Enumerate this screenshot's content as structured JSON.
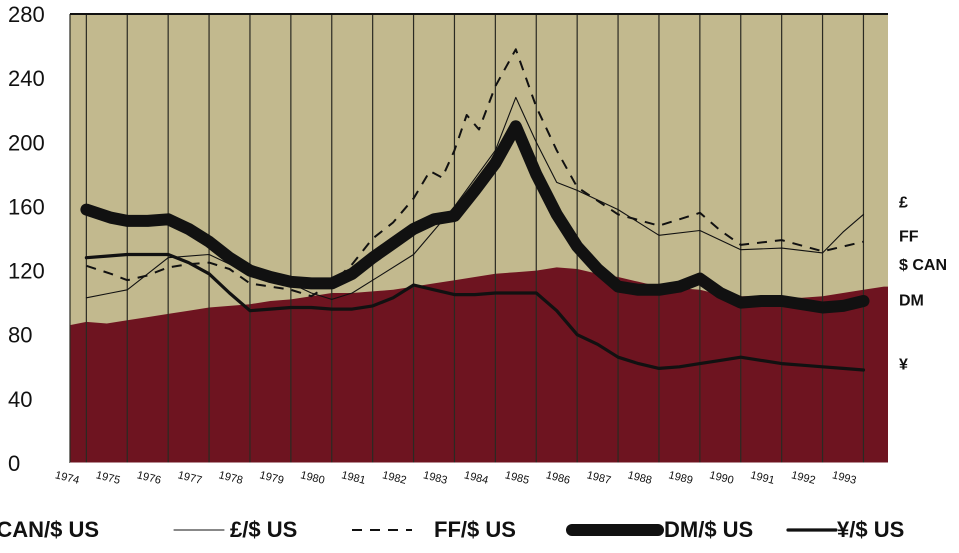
{
  "chart_data": {
    "type": "line",
    "title": "",
    "xlabel": "",
    "ylabel": "",
    "ylim": [
      0,
      280
    ],
    "yticks": [
      0,
      40,
      80,
      120,
      160,
      200,
      240,
      280
    ],
    "categories": [
      "1974",
      "1975",
      "1976",
      "1977",
      "1978",
      "1979",
      "1980",
      "1981",
      "1982",
      "1983",
      "1984",
      "1985",
      "1986",
      "1987",
      "1988",
      "1989",
      "1990",
      "1991",
      "1992",
      "1993"
    ],
    "grid": "vertical",
    "colors": {
      "plot_background": "#c2b98e",
      "area_fill": "#6e1420",
      "line": "#111111",
      "grid": "#2a2a22"
    },
    "series": [
      {
        "name": "$ CAN/$ US",
        "style": "area",
        "x": [
          1973.6,
          1974.0,
          1974.5,
          1975.0,
          1975.5,
          1976.0,
          1976.5,
          1977.0,
          1977.5,
          1978.0,
          1978.5,
          1979.0,
          1979.5,
          1980.0,
          1980.5,
          1981.0,
          1981.5,
          1982.0,
          1982.5,
          1983.0,
          1983.5,
          1984.0,
          1984.5,
          1985.0,
          1985.5,
          1986.0,
          1986.5,
          1987.0,
          1987.5,
          1988.0,
          1988.5,
          1989.0,
          1989.5,
          1990.0,
          1990.5,
          1991.0,
          1991.5,
          1992.0,
          1992.5,
          1993.0,
          1993.5
        ],
        "values": [
          86,
          88,
          87,
          89,
          91,
          93,
          95,
          97,
          98,
          99,
          101,
          102,
          104,
          106,
          106,
          107,
          108,
          110,
          112,
          114,
          116,
          118,
          119,
          120,
          122,
          121,
          118,
          116,
          113,
          110,
          109,
          108,
          105,
          104,
          104,
          103,
          103,
          104,
          106,
          108,
          110
        ]
      },
      {
        "name": "£/$ US",
        "style": "thin",
        "x": [
          1974,
          1974.6,
          1975,
          1975.5,
          1976,
          1977,
          1978,
          1979,
          1979.5,
          1980,
          1980.5,
          1981,
          1982,
          1983,
          1984,
          1984.5,
          1985,
          1985.5,
          1986,
          1987,
          1988,
          1989,
          1990,
          1991,
          1992,
          1992.5,
          1993
        ],
        "values": [
          103,
          106,
          108,
          118,
          128,
          130,
          118,
          112,
          106,
          102,
          106,
          114,
          130,
          160,
          195,
          228,
          200,
          175,
          170,
          158,
          142,
          145,
          133,
          134,
          131,
          144,
          155
        ]
      },
      {
        "name": "FF/$ US",
        "style": "dashed",
        "x": [
          1974,
          1974.6,
          1975,
          1975.5,
          1976,
          1976.5,
          1977,
          1977.5,
          1978,
          1979,
          1979.5,
          1980,
          1980.5,
          1981,
          1981.5,
          1982,
          1982.4,
          1982.7,
          1983,
          1983.3,
          1983.6,
          1984,
          1984.5,
          1985,
          1985.5,
          1986,
          1987,
          1988,
          1988.5,
          1989,
          1989.5,
          1990,
          1991,
          1992,
          1992.5,
          1993
        ],
        "values": [
          123,
          118,
          114,
          117,
          122,
          124,
          125,
          121,
          112,
          108,
          104,
          112,
          124,
          140,
          150,
          165,
          182,
          178,
          195,
          217,
          208,
          235,
          258,
          222,
          195,
          172,
          155,
          148,
          152,
          156,
          145,
          136,
          139,
          132,
          135,
          138
        ]
      },
      {
        "name": "DM/$ US",
        "style": "heavy",
        "x": [
          1974,
          1974.6,
          1975,
          1975.5,
          1976,
          1976.5,
          1977,
          1977.5,
          1978,
          1978.5,
          1979,
          1979.5,
          1980,
          1980.5,
          1981,
          1981.5,
          1982,
          1982.5,
          1983,
          1983.5,
          1984,
          1984.5,
          1985,
          1985.5,
          1986,
          1986.5,
          1987,
          1987.5,
          1988,
          1988.5,
          1989,
          1989.5,
          1990,
          1990.5,
          1991,
          1991.5,
          1992,
          1992.5,
          1993
        ],
        "values": [
          158,
          153,
          151,
          151,
          152,
          146,
          138,
          128,
          120,
          116,
          113,
          112,
          112,
          118,
          128,
          137,
          146,
          152,
          154,
          170,
          187,
          210,
          180,
          155,
          135,
          121,
          110,
          108,
          108,
          110,
          115,
          106,
          100,
          101,
          101,
          99,
          97,
          98,
          101
        ]
      },
      {
        "name": "¥/$ US",
        "style": "medium",
        "x": [
          1974,
          1974.5,
          1975,
          1975.5,
          1976,
          1976.5,
          1977,
          1977.5,
          1978,
          1978.5,
          1979,
          1979.5,
          1980,
          1980.5,
          1981,
          1981.5,
          1982,
          1982.5,
          1983,
          1983.5,
          1984,
          1984.5,
          1985,
          1985.5,
          1986,
          1986.5,
          1987,
          1987.5,
          1988,
          1988.5,
          1989,
          1989.5,
          1990,
          1990.5,
          1991,
          1991.5,
          1992,
          1992.5,
          1993
        ],
        "values": [
          128,
          129,
          130,
          130,
          130,
          125,
          118,
          106,
          95,
          96,
          97,
          97,
          96,
          96,
          98,
          103,
          111,
          108,
          105,
          105,
          106,
          106,
          106,
          95,
          80,
          74,
          66,
          62,
          59,
          60,
          62,
          64,
          66,
          64,
          62,
          61,
          60,
          59,
          58
        ]
      }
    ],
    "end_labels": [
      {
        "text": "£",
        "value": 163
      },
      {
        "text": "FF",
        "value": 142
      },
      {
        "text": "$ CAN",
        "value": 124
      },
      {
        "text": "DM",
        "value": 102
      },
      {
        "text": "¥",
        "value": 62
      }
    ],
    "legend": {
      "placement": "bottom",
      "items": [
        {
          "label": "$ CAN/$ US",
          "style": "area"
        },
        {
          "label": "£/$ US",
          "style": "thin"
        },
        {
          "label": "FF/$ US",
          "style": "dashed"
        },
        {
          "label": "DM/$ US",
          "style": "heavy"
        },
        {
          "label": "¥/$ US",
          "style": "medium"
        }
      ]
    }
  }
}
